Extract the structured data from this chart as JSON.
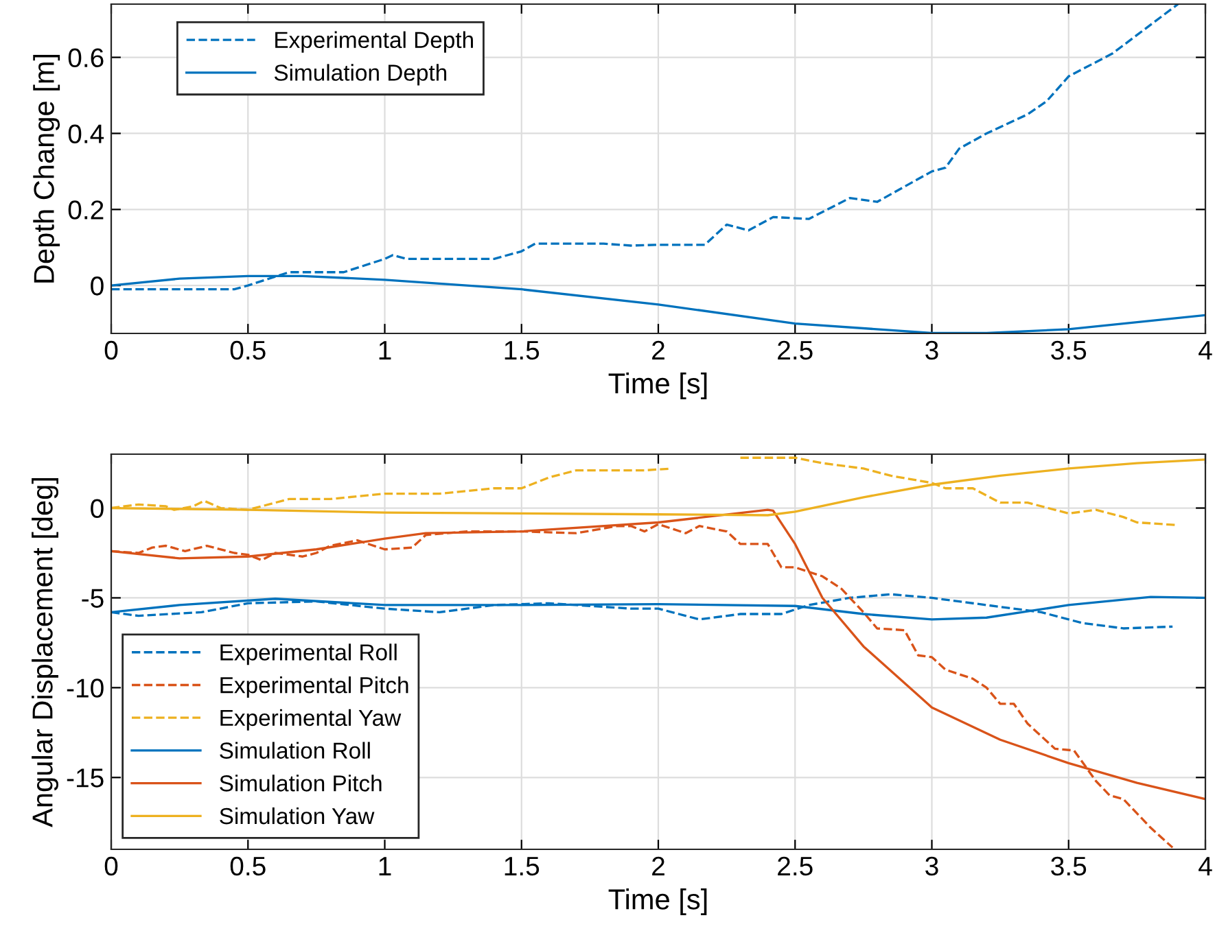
{
  "chart_data": [
    {
      "type": "line",
      "xlabel": "Time [s]",
      "ylabel": "Depth Change [m]",
      "xlim": [
        0,
        4
      ],
      "ylim": [
        -0.126,
        0.74
      ],
      "xticks": [
        0,
        0.5,
        1,
        1.5,
        2,
        2.5,
        3,
        3.5,
        4
      ],
      "yticks": [
        0,
        0.2,
        0.4,
        0.6
      ],
      "grid": true,
      "legend": "top left",
      "series": [
        {
          "name": "Experimental Depth",
          "color": "#0072bd",
          "line_style": "dashed",
          "x": [
            0,
            0.45,
            0.5,
            0.65,
            0.85,
            1.0,
            1.03,
            1.08,
            1.4,
            1.5,
            1.55,
            1.8,
            1.9,
            2.0,
            2.17,
            2.25,
            2.33,
            2.42,
            2.55,
            2.7,
            2.8,
            2.85,
            3.0,
            3.05,
            3.1,
            3.2,
            3.35,
            3.42,
            3.5,
            3.66,
            3.9
          ],
          "values": [
            -0.01,
            -0.01,
            0.0,
            0.035,
            0.035,
            0.07,
            0.08,
            0.07,
            0.07,
            0.09,
            0.11,
            0.11,
            0.105,
            0.107,
            0.107,
            0.16,
            0.145,
            0.18,
            0.175,
            0.23,
            0.22,
            0.24,
            0.3,
            0.31,
            0.36,
            0.4,
            0.45,
            0.485,
            0.55,
            0.61,
            0.74
          ]
        },
        {
          "name": "Simulation Depth",
          "color": "#0072bd",
          "line_style": "solid",
          "x": [
            0,
            0.25,
            0.5,
            0.7,
            1.0,
            1.5,
            2.0,
            2.5,
            3.0,
            3.2,
            3.5,
            4.0
          ],
          "values": [
            0.0,
            0.018,
            0.025,
            0.025,
            0.015,
            -0.01,
            -0.05,
            -0.1,
            -0.125,
            -0.125,
            -0.115,
            -0.078
          ]
        }
      ]
    },
    {
      "type": "line",
      "xlabel": "Time [s]",
      "ylabel": "Angular Displacement [deg]",
      "xlim": [
        0,
        4
      ],
      "ylim": [
        -19,
        3
      ],
      "xticks": [
        0,
        0.5,
        1,
        1.5,
        2,
        2.5,
        3,
        3.5,
        4
      ],
      "yticks": [
        -15,
        -10,
        -5,
        0
      ],
      "grid": true,
      "legend": "bottom left",
      "series": [
        {
          "name": "Experimental Roll",
          "color": "#0072bd",
          "line_style": "dashed",
          "x": [
            0,
            0.1,
            0.33,
            0.5,
            0.75,
            1.0,
            1.2,
            1.4,
            1.6,
            1.8,
            1.9,
            2.0,
            2.15,
            2.3,
            2.45,
            2.55,
            2.7,
            2.85,
            3.0,
            3.2,
            3.4,
            3.55,
            3.7,
            3.88
          ],
          "values": [
            -5.8,
            -6.0,
            -5.8,
            -5.3,
            -5.2,
            -5.6,
            -5.8,
            -5.4,
            -5.3,
            -5.5,
            -5.6,
            -5.6,
            -6.2,
            -5.9,
            -5.9,
            -5.4,
            -5.0,
            -4.8,
            -5.0,
            -5.4,
            -5.8,
            -6.4,
            -6.7,
            -6.6
          ]
        },
        {
          "name": "Experimental Pitch",
          "color": "#d95319",
          "line_style": "dashed",
          "x": [
            0,
            0.1,
            0.15,
            0.2,
            0.27,
            0.35,
            0.45,
            0.5,
            0.55,
            0.6,
            0.7,
            0.75,
            0.8,
            0.9,
            1.0,
            1.1,
            1.15,
            1.3,
            1.5,
            1.7,
            1.85,
            1.9,
            1.95,
            2.0,
            2.1,
            2.15,
            2.25,
            2.3,
            2.4,
            2.45,
            2.5,
            2.6,
            2.67,
            2.75,
            2.8,
            2.9,
            2.95,
            3.0,
            3.05,
            3.15,
            3.2,
            3.25,
            3.3,
            3.35,
            3.45,
            3.52,
            3.6,
            3.65,
            3.7,
            3.8,
            3.88
          ],
          "values": [
            -2.4,
            -2.5,
            -2.2,
            -2.1,
            -2.4,
            -2.1,
            -2.5,
            -2.6,
            -2.9,
            -2.5,
            -2.7,
            -2.5,
            -2.1,
            -1.8,
            -2.3,
            -2.2,
            -1.5,
            -1.3,
            -1.3,
            -1.4,
            -1.0,
            -1.0,
            -1.3,
            -0.9,
            -1.4,
            -1.0,
            -1.3,
            -2.0,
            -2.0,
            -3.3,
            -3.3,
            -3.8,
            -4.5,
            -5.8,
            -6.7,
            -6.8,
            -8.2,
            -8.3,
            -9.0,
            -9.5,
            -10.0,
            -10.9,
            -10.9,
            -12.0,
            -13.4,
            -13.5,
            -15.2,
            -16.0,
            -16.2,
            -17.8,
            -18.9
          ]
        },
        {
          "name": "Experimental Yaw",
          "color": "#edb120",
          "line_style": "dashed",
          "x": [
            0,
            0.1,
            0.2,
            0.23,
            0.3,
            0.34,
            0.4,
            0.5,
            0.55,
            0.65,
            0.8,
            1.0,
            1.2,
            1.4,
            1.5,
            1.6,
            1.7,
            1.95,
            2.05,
            2.12,
            2.25,
            2.3,
            2.5,
            2.6,
            2.75,
            2.85,
            3.0,
            3.05,
            3.15,
            3.25,
            3.35,
            3.5,
            3.6,
            3.7,
            3.75,
            3.9
          ],
          "values": [
            0,
            0.2,
            0.1,
            -0.1,
            0.1,
            0.4,
            0,
            -0.1,
            0.1,
            0.5,
            0.5,
            0.8,
            0.8,
            1.1,
            1.1,
            1.7,
            2.1,
            2.1,
            2.2,
            null,
            null,
            2.8,
            2.8,
            2.5,
            2.2,
            1.8,
            1.4,
            1.1,
            1.1,
            0.3,
            0.3,
            -0.3,
            -0.1,
            -0.5,
            -0.8,
            -0.95
          ]
        },
        {
          "name": "Simulation Roll",
          "color": "#0072bd",
          "line_style": "solid",
          "x": [
            0,
            0.25,
            0.6,
            1.0,
            1.5,
            2.0,
            2.5,
            2.75,
            3.0,
            3.2,
            3.5,
            3.8,
            4.0
          ],
          "values": [
            -5.8,
            -5.4,
            -5.05,
            -5.4,
            -5.4,
            -5.35,
            -5.45,
            -5.9,
            -6.2,
            -6.1,
            -5.4,
            -4.95,
            -5.0
          ]
        },
        {
          "name": "Simulation Pitch",
          "color": "#d95319",
          "line_style": "solid",
          "x": [
            0,
            0.25,
            0.5,
            0.75,
            1.0,
            1.15,
            1.5,
            2.0,
            2.4,
            2.42,
            2.5,
            2.6,
            2.75,
            3.0,
            3.25,
            3.5,
            3.75,
            4.0
          ],
          "values": [
            -2.4,
            -2.8,
            -2.7,
            -2.3,
            -1.7,
            -1.4,
            -1.3,
            -0.8,
            -0.1,
            -0.15,
            -2.0,
            -5.0,
            -7.7,
            -11.1,
            -12.9,
            -14.2,
            -15.3,
            -16.2
          ]
        },
        {
          "name": "Simulation Yaw",
          "color": "#edb120",
          "line_style": "solid",
          "x": [
            0,
            0.5,
            1.0,
            1.5,
            2.0,
            2.4,
            2.5,
            2.75,
            3.0,
            3.25,
            3.5,
            3.75,
            4.0
          ],
          "values": [
            0,
            -0.1,
            -0.25,
            -0.3,
            -0.35,
            -0.4,
            -0.2,
            0.6,
            1.3,
            1.8,
            2.2,
            2.5,
            2.7
          ]
        }
      ]
    }
  ]
}
